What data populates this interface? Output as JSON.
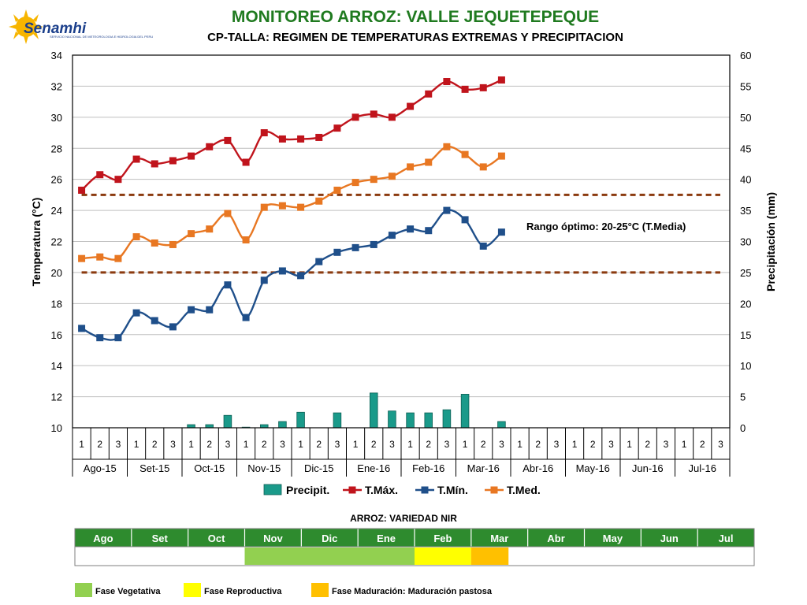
{
  "logo": {
    "name": "Senamhi",
    "subtitle": "SERVICIO NACIONAL DE METEOROLOGIA E HIDROLOGIA DEL PERU"
  },
  "header": {
    "title": "MONITOREO ARROZ: VALLE JEQUETEPEQUE",
    "subtitle": "CP-TALLA: REGIMEN DE TEMPERATURAS EXTREMAS Y PRECIPITACION"
  },
  "chart_data": {
    "type": "line",
    "ylabel": "Temperatura (°C)",
    "y2label": "Precipitación (mm)",
    "ylim": [
      10,
      34
    ],
    "y2lim": [
      0,
      60
    ],
    "yticks": [
      "10",
      "12",
      "14",
      "16",
      "18",
      "20",
      "22",
      "24",
      "26",
      "28",
      "30",
      "32",
      "34"
    ],
    "y2ticks": [
      "0",
      "5",
      "10",
      "15",
      "20",
      "25",
      "30",
      "35",
      "40",
      "45",
      "50",
      "55",
      "60"
    ],
    "dekads": [
      "1",
      "2",
      "3"
    ],
    "months": [
      "Ago-15",
      "Set-15",
      "Oct-15",
      "Nov-15",
      "Dic-15",
      "Ene-16",
      "Feb-16",
      "Mar-16",
      "Abr-16",
      "May-16",
      "Jun-16",
      "Jul-16"
    ],
    "grid": true,
    "legend_position": "bottom",
    "series": [
      {
        "name": "Precipit.",
        "type": "bar",
        "axis": "right",
        "color": "#1a9a8a",
        "values": [
          0,
          0,
          0,
          0,
          0,
          0,
          0.5,
          0.5,
          2.0,
          0.1,
          0.5,
          1.0,
          2.5,
          0,
          2.4,
          0,
          5.6,
          2.7,
          2.4,
          2.4,
          2.9,
          5.4,
          0,
          1.0,
          null,
          null,
          null,
          null,
          null,
          null,
          null,
          null,
          null,
          null,
          null,
          null
        ]
      },
      {
        "name": "T.Máx.",
        "type": "line",
        "axis": "left",
        "color": "#c0141c",
        "marker": "square",
        "values": [
          25.3,
          26.3,
          26.0,
          27.3,
          27.0,
          27.2,
          27.5,
          28.1,
          28.5,
          27.1,
          29.0,
          28.6,
          28.6,
          28.7,
          29.3,
          30.0,
          30.2,
          30.0,
          30.7,
          31.5,
          32.3,
          31.8,
          31.9,
          32.4,
          null,
          null,
          null,
          null,
          null,
          null,
          null,
          null,
          null,
          null,
          null,
          null
        ]
      },
      {
        "name": "T.Mín.",
        "type": "line",
        "axis": "left",
        "color": "#1f4f8a",
        "marker": "square",
        "values": [
          16.4,
          15.8,
          15.8,
          17.4,
          16.9,
          16.5,
          17.6,
          17.6,
          19.2,
          17.1,
          19.5,
          20.1,
          19.8,
          20.7,
          21.3,
          21.6,
          21.8,
          22.4,
          22.8,
          22.7,
          24.0,
          23.4,
          21.7,
          22.6,
          null,
          null,
          null,
          null,
          null,
          null,
          null,
          null,
          null,
          null,
          null,
          null
        ]
      },
      {
        "name": "T.Med.",
        "type": "line",
        "axis": "left",
        "color": "#e87722",
        "marker": "square",
        "values": [
          20.9,
          21.0,
          20.9,
          22.3,
          21.9,
          21.8,
          22.5,
          22.8,
          23.8,
          22.1,
          24.2,
          24.3,
          24.2,
          24.6,
          25.3,
          25.8,
          26.0,
          26.2,
          26.8,
          27.1,
          28.1,
          27.6,
          26.8,
          27.5,
          null,
          null,
          null,
          null,
          null,
          null,
          null,
          null,
          null,
          null,
          null,
          null
        ]
      }
    ],
    "reference_lines": {
      "values": [
        20,
        25
      ],
      "color": "#8b3a0f"
    },
    "annotation": "Rango óptimo: 20-25°C (T.Media)"
  },
  "phases": {
    "title": "ARROZ: VARIEDAD NIR",
    "months": [
      "Ago",
      "Set",
      "Oct",
      "Nov",
      "Dic",
      "Ene",
      "Feb",
      "Mar",
      "Abr",
      "May",
      "Jun",
      "Jul"
    ],
    "header_color": "#2e8b2e",
    "bars": [
      {
        "start_month": 3.0,
        "end_month": 6.0,
        "color": "#92d050"
      },
      {
        "start_month": 6.0,
        "end_month": 7.0,
        "color": "#ffff00"
      },
      {
        "start_month": 7.0,
        "end_month": 7.66,
        "color": "#ffc000"
      }
    ],
    "legend": [
      {
        "label": "Fase Vegetativa",
        "color": "#92d050"
      },
      {
        "label": "Fase Reproductiva",
        "color": "#ffff00"
      },
      {
        "label": "Fase Maduración: Maduración pastosa",
        "color": "#ffc000"
      }
    ]
  }
}
